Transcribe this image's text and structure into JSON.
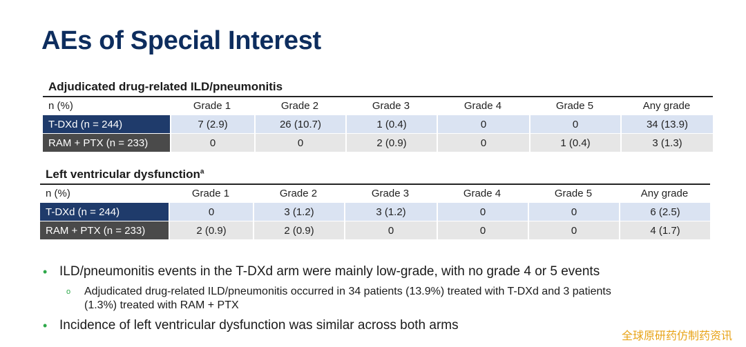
{
  "title": "AEs of Special Interest",
  "ild": {
    "heading": "Adjudicated drug-related ILD/pneumonitis",
    "headers": [
      "n (%)",
      "Grade 1",
      "Grade 2",
      "Grade 3",
      "Grade 4",
      "Grade 5",
      "Any grade"
    ],
    "rows": [
      {
        "label": "T-DXd (n = 244)",
        "cells": [
          "7 (2.9)",
          "26 (10.7)",
          "1 (0.4)",
          "0",
          "0",
          "34 (13.9)"
        ]
      },
      {
        "label": "RAM + PTX (n = 233)",
        "cells": [
          "0",
          "0",
          "2 (0.9)",
          "0",
          "1 (0.4)",
          "3 (1.3)"
        ]
      }
    ]
  },
  "lvd": {
    "heading": "Left ventricular dysfunction",
    "heading_sup": "a",
    "headers": [
      "n (%)",
      "Grade 1",
      "Grade 2",
      "Grade 3",
      "Grade 4",
      "Grade 5",
      "Any grade"
    ],
    "rows": [
      {
        "label": "T-DXd (n = 244)",
        "cells": [
          "0",
          "3 (1.2)",
          "3 (1.2)",
          "0",
          "0",
          "6 (2.5)"
        ]
      },
      {
        "label": "RAM + PTX (n = 233)",
        "cells": [
          "2 (0.9)",
          "2 (0.9)",
          "0",
          "0",
          "0",
          "4 (1.7)"
        ]
      }
    ]
  },
  "bullets": {
    "b1": "ILD/pneumonitis events in the T-DXd arm were mainly low-grade, with no grade 4 or 5 events",
    "b1_sub": "Adjudicated drug-related ILD/pneumonitis occurred in 34 patients (13.9%) treated with T-DXd and 3 patients (1.3%) treated with RAM + PTX",
    "b2": "Incidence of left ventricular dysfunction was similar across both arms",
    "dot_glyph": "•",
    "ring_glyph": "o"
  },
  "watermark": "全球原研药仿制药资讯",
  "colors": {
    "title": "#0d2d5e",
    "tdxd_label_bg": "#1f3b6b",
    "tdxd_row_bg": "#dae3f2",
    "ram_label_bg": "#4a4a4a",
    "ram_row_bg": "#e6e6e6",
    "bullet": "#2ea84a",
    "watermark": "#e8a317"
  }
}
